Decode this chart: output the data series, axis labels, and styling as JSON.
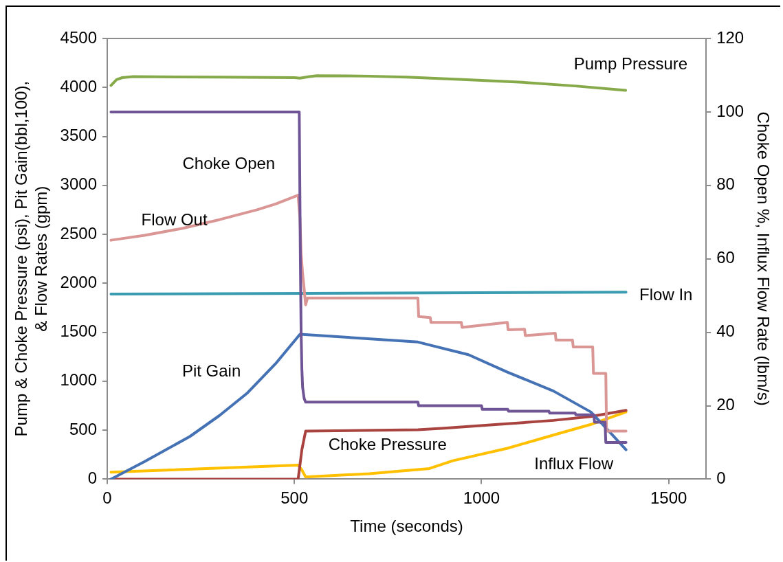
{
  "chart_data": {
    "type": "line",
    "xlabel": "Time (seconds)",
    "ylabel": "Pump & Choke Pressure (psi), Pit Gain(bbl,100),\n& Flow Rates (gpm)",
    "y2label": "Choke Open %, Influx Flow Rate (lbm/s)",
    "xlim": [
      0,
      1600
    ],
    "xticks": [
      0,
      500,
      1000,
      1500
    ],
    "ylim": [
      0,
      4500
    ],
    "yticks": [
      0,
      500,
      1000,
      1500,
      2000,
      2500,
      3000,
      3500,
      4000,
      4500
    ],
    "y2lim": [
      0,
      120
    ],
    "y2ticks": [
      0,
      20,
      40,
      60,
      80,
      100,
      120
    ],
    "grid": false,
    "legend": false,
    "marker": "none",
    "line_style": "solid",
    "series": [
      {
        "name": "Pump Pressure",
        "color": "#86a94a",
        "x": [
          10,
          25,
          40,
          70,
          300,
          500,
          515,
          540,
          560,
          700,
          800,
          950,
          1100,
          1250,
          1385
        ],
        "values": [
          4020,
          4080,
          4100,
          4110,
          4105,
          4100,
          4095,
          4110,
          4120,
          4115,
          4105,
          4080,
          4055,
          4015,
          3970
        ]
      },
      {
        "name": "Choke Open",
        "color": "#6f5596",
        "axis": "y2",
        "x": [
          10,
          513,
          516,
          518,
          520,
          522,
          526,
          530,
          830,
          832,
          1000,
          1002,
          1070,
          1072,
          1180,
          1182,
          1250,
          1252,
          1300,
          1302,
          1330,
          1332,
          1386
        ],
        "values": [
          100,
          100,
          60,
          40,
          30,
          25,
          22,
          21,
          21,
          20,
          20,
          19,
          19,
          18.5,
          18.5,
          18,
          18,
          17.5,
          17.5,
          15.5,
          15.5,
          10,
          10
        ]
      },
      {
        "name": "Flow Out",
        "color": "#da9694",
        "x": [
          10,
          100,
          200,
          300,
          400,
          450,
          510,
          515,
          518,
          522,
          526,
          530,
          535,
          830,
          832,
          863,
          865,
          946,
          948,
          1069,
          1071,
          1115,
          1117,
          1197,
          1199,
          1243,
          1245,
          1297,
          1299,
          1332,
          1334,
          1386
        ],
        "values": [
          2440,
          2490,
          2560,
          2650,
          2750,
          2810,
          2900,
          2650,
          2300,
          2100,
          1950,
          1780,
          1850,
          1850,
          1660,
          1650,
          1600,
          1600,
          1550,
          1600,
          1525,
          1530,
          1465,
          1490,
          1420,
          1420,
          1350,
          1350,
          1080,
          1080,
          490,
          490
        ]
      },
      {
        "name": "Flow In",
        "color": "#3a9cb0",
        "x": [
          10,
          1386
        ],
        "values": [
          1890,
          1910
        ]
      },
      {
        "name": "Pit Gain",
        "color": "#4472b4",
        "x": [
          10,
          100,
          221,
          300,
          375,
          450,
          515,
          830,
          861,
          965,
          1069,
          1192,
          1292,
          1332,
          1386
        ],
        "values": [
          0,
          180,
          436,
          650,
          882,
          1180,
          1480,
          1400,
          1370,
          1271,
          1093,
          900,
          686,
          525,
          300
        ]
      },
      {
        "name": "Choke Pressure",
        "color": "#a94340",
        "x": [
          10,
          510,
          520,
          530,
          830,
          900,
          1069,
          1192,
          1292,
          1386
        ],
        "values": [
          0,
          0,
          300,
          490,
          505,
          520,
          565,
          600,
          640,
          703
        ]
      },
      {
        "name": "Influx Flow",
        "color": "#ffc000",
        "axis": "y2",
        "x": [
          10,
          510,
          520,
          530,
          700,
          861,
          923,
          1069,
          1192,
          1292,
          1386
        ],
        "values": [
          1.9,
          3.8,
          2.5,
          0.6,
          1.5,
          2.9,
          5.0,
          8.4,
          12.0,
          14.9,
          18.3
        ]
      }
    ]
  }
}
